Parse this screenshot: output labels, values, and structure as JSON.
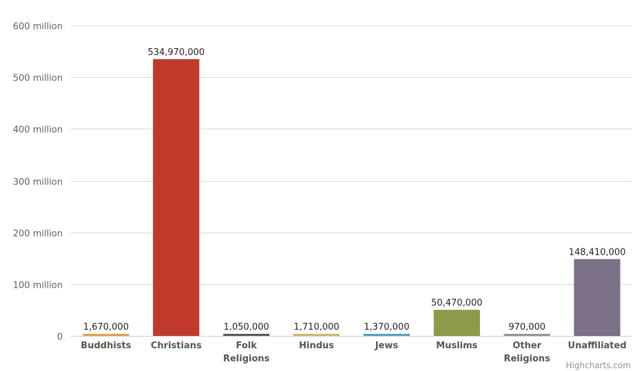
{
  "chart_data": {
    "type": "bar",
    "categories": [
      "Buddhists",
      "Christians",
      "Folk Religions",
      "Hindus",
      "Jews",
      "Muslims",
      "Other Religions",
      "Unaffiliated"
    ],
    "values": [
      1670000,
      534970000,
      1050000,
      1710000,
      1370000,
      50470000,
      970000,
      148410000
    ],
    "data_labels": [
      "1,670,000",
      "534,970,000",
      "1,050,000",
      "1,710,000",
      "1,370,000",
      "50,470,000",
      "970,000",
      "148,410,000"
    ],
    "colors": [
      "#e8a33a",
      "#c0392b",
      "#555a60",
      "#dcb35a",
      "#4aa3c8",
      "#8f9a48",
      "#9a9590",
      "#7c6f88"
    ],
    "ylim": [
      0,
      600000000
    ],
    "yticks": [
      {
        "value": 0,
        "label": "0"
      },
      {
        "value": 100000000,
        "label": "100 million"
      },
      {
        "value": 200000000,
        "label": "200 million"
      },
      {
        "value": 300000000,
        "label": "300 million"
      },
      {
        "value": 400000000,
        "label": "400 million"
      },
      {
        "value": 500000000,
        "label": "500 million"
      },
      {
        "value": 600000000,
        "label": "600 million"
      }
    ],
    "grid": true,
    "title": "",
    "xlabel": "",
    "ylabel": ""
  },
  "credit": "Highcharts.com"
}
